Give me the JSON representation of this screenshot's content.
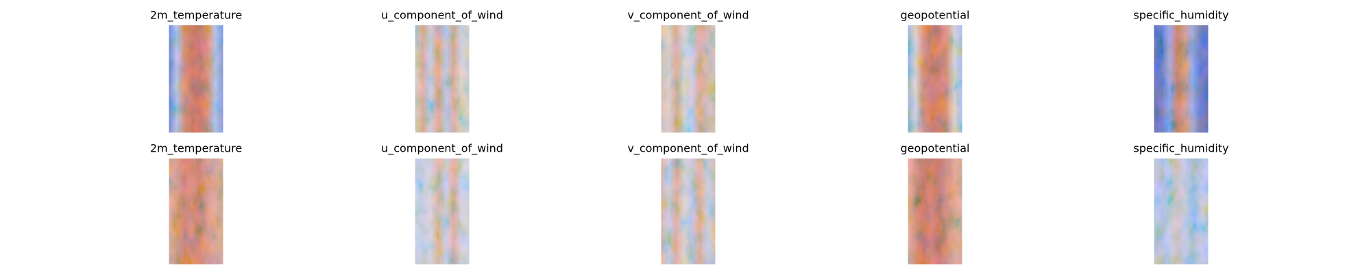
{
  "rows": [
    [
      {
        "title": "2m_temperature"
      },
      {
        "title": "u_component_of_wind"
      },
      {
        "title": "v_component_of_wind"
      },
      {
        "title": "geopotential"
      },
      {
        "title": "specific_humidity"
      }
    ],
    [
      {
        "title": "2m_temperature"
      },
      {
        "title": "u_component_of_wind"
      },
      {
        "title": "v_component_of_wind"
      },
      {
        "title": "geopotential"
      },
      {
        "title": "specific_humidity"
      }
    ]
  ]
}
